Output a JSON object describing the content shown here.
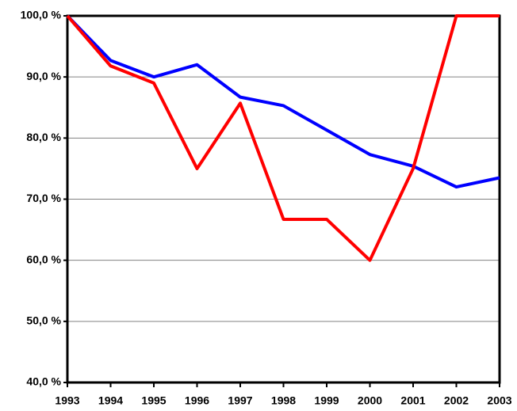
{
  "chart_data": {
    "type": "line",
    "categories": [
      "1993",
      "1994",
      "1995",
      "1996",
      "1997",
      "1998",
      "1999",
      "2000",
      "2001",
      "2002",
      "2003"
    ],
    "series": [
      {
        "color": "#0000ff",
        "values": [
          100,
          92.7,
          90.0,
          92.0,
          86.7,
          85.3,
          81.3,
          77.3,
          75.4,
          72.0,
          73.5
        ]
      },
      {
        "color": "#ff0000",
        "values": [
          100,
          91.8,
          89.0,
          75.0,
          85.7,
          66.7,
          66.7,
          60.0,
          75.0,
          100,
          100
        ]
      }
    ],
    "ylim": [
      40,
      100
    ],
    "yticks": [
      {
        "value": 40,
        "label": "40,0 %"
      },
      {
        "value": 50,
        "label": "50,0 %"
      },
      {
        "value": 60,
        "label": "60,0 %"
      },
      {
        "value": 70,
        "label": "70,0 %"
      },
      {
        "value": 80,
        "label": "80,0 %"
      },
      {
        "value": 90,
        "label": "90,0 %"
      },
      {
        "value": 100,
        "label": "100,0 %"
      }
    ],
    "grid": true
  }
}
